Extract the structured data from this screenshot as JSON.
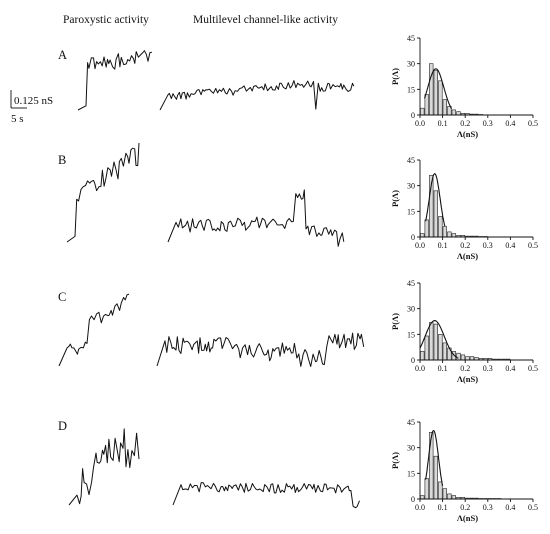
{
  "headers": {
    "paroxystic": "Paroxystic activity",
    "multilevel": "Multilevel channel-like activity"
  },
  "scale_bar": {
    "conductance": "0.125 nS",
    "time": "5 s"
  },
  "panels": [
    {
      "label": "A"
    },
    {
      "label": "B"
    },
    {
      "label": "C"
    },
    {
      "label": "D"
    }
  ],
  "chart_data": [
    {
      "type": "bar",
      "panel": "A",
      "xlabel": "Λ(nS)",
      "ylabel": "P(Λ)",
      "xlim": [
        0,
        0.5
      ],
      "ylim": [
        0,
        45
      ],
      "xticks": [
        "0.0",
        "0.1",
        "0.2",
        "0.3",
        "0.4",
        "0.5"
      ],
      "yticks": [
        "0",
        "15",
        "30",
        "45"
      ],
      "bin_width": 0.02,
      "bins": [
        0.01,
        0.03,
        0.05,
        0.07,
        0.09,
        0.11,
        0.13,
        0.15,
        0.17,
        0.19,
        0.21,
        0.23,
        0.25,
        0.27
      ],
      "values": [
        4,
        12,
        30,
        26,
        20,
        9,
        5,
        3,
        2,
        1,
        1,
        0.5,
        0.5,
        0.3
      ],
      "fit": {
        "mu": 0.07,
        "sigma": 0.035,
        "peak": 27,
        "x_range": [
          0.02,
          0.14
        ]
      }
    },
    {
      "type": "bar",
      "panel": "B",
      "xlabel": "Λ(nS)",
      "ylabel": "P(Λ)",
      "xlim": [
        0,
        0.5
      ],
      "ylim": [
        0,
        45
      ],
      "xticks": [
        "0.0",
        "0.1",
        "0.2",
        "0.3",
        "0.4",
        "0.5"
      ],
      "yticks": [
        "0",
        "15",
        "30",
        "45"
      ],
      "bin_width": 0.02,
      "bins": [
        0.01,
        0.03,
        0.05,
        0.07,
        0.09,
        0.11,
        0.13,
        0.15,
        0.17,
        0.19,
        0.21,
        0.23,
        0.25,
        0.27,
        0.29
      ],
      "values": [
        2,
        10,
        36,
        27,
        12,
        6,
        3,
        2,
        1,
        1,
        0.5,
        0.5,
        0.5,
        0.3,
        0.3
      ],
      "fit": {
        "mu": 0.065,
        "sigma": 0.024,
        "peak": 37,
        "x_range": [
          0.025,
          0.11
        ]
      }
    },
    {
      "type": "bar",
      "panel": "C",
      "xlabel": "Λ(nS)",
      "ylabel": "P(Λ)",
      "xlim": [
        0,
        0.5
      ],
      "ylim": [
        0,
        45
      ],
      "xticks": [
        "0.0",
        "0.1",
        "0.2",
        "0.3",
        "0.4",
        "0.5"
      ],
      "yticks": [
        "0",
        "15",
        "30",
        "45"
      ],
      "bin_width": 0.02,
      "bins": [
        0.01,
        0.03,
        0.05,
        0.07,
        0.09,
        0.11,
        0.13,
        0.15,
        0.17,
        0.19,
        0.21,
        0.23,
        0.25,
        0.27,
        0.29,
        0.31,
        0.33,
        0.35,
        0.37,
        0.39
      ],
      "values": [
        5,
        14,
        22,
        21,
        15,
        10,
        7,
        5,
        4,
        3,
        2,
        2,
        1.5,
        1,
        1,
        1,
        0.5,
        0.5,
        0.5,
        0.5
      ],
      "fit": {
        "mu": 0.065,
        "sigma": 0.042,
        "peak": 23,
        "x_range": [
          0.0,
          0.17
        ]
      }
    },
    {
      "type": "bar",
      "panel": "D",
      "xlabel": "Λ(nS)",
      "ylabel": "P(Λ)",
      "xlim": [
        0,
        0.5
      ],
      "ylim": [
        0,
        45
      ],
      "xticks": [
        "0.0",
        "0.1",
        "0.2",
        "0.3",
        "0.4",
        "0.5"
      ],
      "yticks": [
        "0",
        "15",
        "30",
        "45"
      ],
      "bin_width": 0.02,
      "bins": [
        0.01,
        0.03,
        0.05,
        0.07,
        0.09,
        0.11,
        0.13,
        0.15,
        0.17,
        0.19,
        0.21,
        0.23,
        0.25,
        0.27,
        0.29,
        0.31,
        0.33,
        0.35
      ],
      "values": [
        2,
        12,
        39,
        25,
        10,
        6,
        3,
        2,
        1,
        1,
        0.5,
        0.5,
        0.5,
        0.3,
        0.3,
        0.3,
        0.3,
        0.3
      ],
      "fit": {
        "mu": 0.06,
        "sigma": 0.022,
        "peak": 40,
        "x_range": [
          0.025,
          0.1
        ]
      }
    }
  ]
}
